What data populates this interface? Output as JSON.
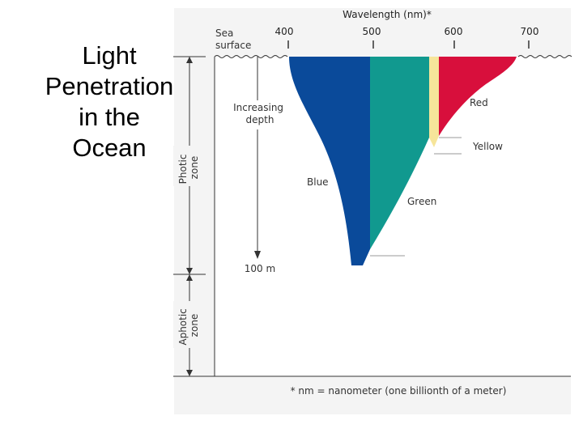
{
  "slide": {
    "title_lines": [
      "Light",
      "Penetration",
      "in the",
      "Ocean"
    ]
  },
  "diagram": {
    "axis_title": "Wavelength (nm)*",
    "ticks": [
      "400",
      "500",
      "600",
      "700"
    ],
    "sea_surface": [
      "Sea",
      "surface"
    ],
    "increasing_depth": [
      "Increasing",
      "depth"
    ],
    "depth_marker": "100 m",
    "zones": {
      "photic": [
        "Photic",
        "zone"
      ],
      "aphotic": [
        "Aphotic",
        "zone"
      ]
    },
    "bands": {
      "blue": "Blue",
      "green": "Green",
      "yellow": "Yellow",
      "red": "Red"
    },
    "footnote": "* nm = nanometer (one billionth of a meter)",
    "colors": {
      "blue": "#0a4a9a",
      "green": "#11998f",
      "yellow": "#f6e59a",
      "red": "#d80f3c",
      "panel": "#f2f2f2"
    }
  }
}
